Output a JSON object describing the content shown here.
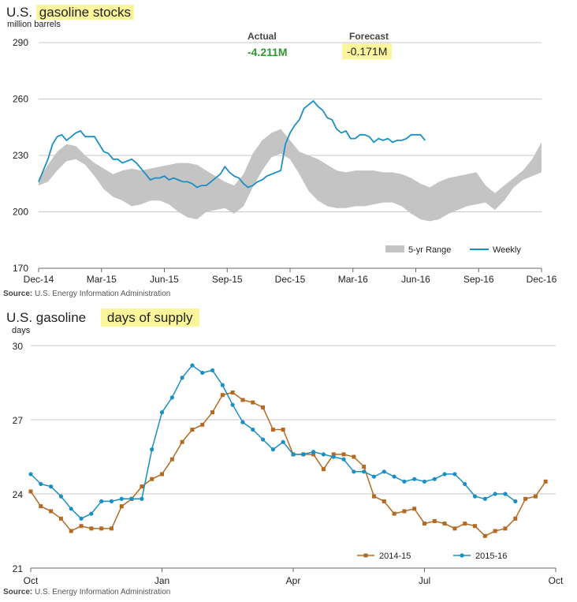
{
  "top": {
    "title_prefix": "U.S.",
    "title_highlight": "gasoline stocks",
    "unit": "million barrels",
    "actual_label": "Actual",
    "actual_value": "-4.211M",
    "forecast_label": "Forecast",
    "forecast_value": "-0.171M",
    "source_bold": "Source:",
    "source_text": " U.S. Energy Information Administration"
  },
  "bottom": {
    "title_prefix": "U.S. gasoline",
    "title_highlight": "days of supply",
    "unit": "days",
    "source_bold": "Source:",
    "source_text": " U.S. Energy Information Administration"
  },
  "colors": {
    "weekly": "#1a8fc4",
    "range": "#c4c4c4",
    "series_2014": "#b56a22",
    "series_2015": "#1a8fc4",
    "highlight": "#fbf59b",
    "actual": "#2e9a2e"
  },
  "chart_data": [
    {
      "type": "area",
      "title": "U.S. gasoline stocks",
      "ylabel": "million barrels",
      "ylim": [
        170,
        290
      ],
      "yticks": [
        170,
        200,
        230,
        260,
        290
      ],
      "x_tick_labels": [
        "Dec-14",
        "Mar-15",
        "Jun-15",
        "Sep-15",
        "Dec-15",
        "Mar-16",
        "Jun-16",
        "Sep-16",
        "Dec-16"
      ],
      "legend": [
        "5-yr Range",
        "Weekly"
      ],
      "legend_position": "bottom-right",
      "grid": true,
      "range_x": [
        0,
        2,
        4,
        6,
        8,
        10,
        12,
        14,
        16,
        18,
        20,
        22,
        24,
        26,
        28,
        30,
        32,
        34,
        36,
        38,
        40,
        42,
        44,
        46,
        48,
        50,
        52,
        54,
        56,
        58,
        60,
        62,
        64,
        66,
        68,
        70,
        72,
        74,
        76,
        78,
        80,
        82,
        84,
        86,
        88,
        90,
        92,
        94,
        96,
        98,
        100,
        102,
        104,
        106,
        108
      ],
      "range_upper": [
        217,
        225,
        232,
        236,
        235,
        230,
        226,
        223,
        220,
        222,
        223,
        222,
        223,
        224,
        225,
        226,
        226,
        225,
        222,
        219,
        216,
        214,
        220,
        231,
        238,
        242,
        244,
        238,
        232,
        230,
        228,
        225,
        222,
        221,
        222,
        222,
        222,
        221,
        221,
        220,
        218,
        215,
        213,
        216,
        218,
        219,
        220,
        221,
        214,
        210,
        214,
        218,
        222,
        228,
        237
      ],
      "range_lower": [
        214,
        216,
        222,
        227,
        228,
        225,
        219,
        212,
        208,
        206,
        203,
        204,
        206,
        206,
        204,
        200,
        197,
        196,
        200,
        201,
        202,
        199,
        203,
        213,
        222,
        229,
        231,
        228,
        220,
        211,
        206,
        203,
        202,
        202,
        203,
        203,
        204,
        205,
        205,
        203,
        199,
        196,
        195,
        196,
        199,
        201,
        203,
        204,
        205,
        201,
        206,
        213,
        217,
        219,
        221
      ],
      "weekly_x": [
        0,
        1,
        2,
        3,
        4,
        5,
        6,
        7,
        8,
        9,
        10,
        11,
        12,
        13,
        14,
        15,
        16,
        17,
        18,
        19,
        20,
        21,
        22,
        23,
        24,
        25,
        26,
        27,
        28,
        29,
        30,
        31,
        32,
        33,
        34,
        35,
        36,
        37,
        38,
        39,
        40,
        41,
        42,
        43,
        44,
        45,
        46,
        47,
        48,
        49,
        50,
        51,
        52,
        53,
        54,
        55,
        56,
        57,
        58,
        59,
        60,
        61,
        62,
        63,
        64,
        65,
        66,
        67,
        68,
        69,
        70,
        71,
        72,
        73,
        74,
        75,
        76,
        77,
        78,
        79,
        80,
        81,
        82,
        83
      ],
      "weekly_values": [
        216,
        222,
        228,
        236,
        240,
        241,
        238,
        240,
        242,
        243,
        240,
        240,
        240,
        236,
        232,
        231,
        228,
        228,
        226,
        227,
        228,
        226,
        223,
        220,
        217,
        218,
        218,
        219,
        217,
        218,
        217,
        216,
        216,
        215,
        213,
        214,
        214,
        216,
        218,
        220,
        224,
        221,
        219,
        218,
        215,
        213,
        214,
        216,
        217,
        219,
        220,
        221,
        222,
        236,
        242,
        246,
        249,
        255,
        257,
        259,
        256,
        254,
        250,
        249,
        244,
        242,
        243,
        239,
        239,
        241,
        241,
        240,
        237,
        239,
        238,
        239,
        237,
        238,
        238,
        239,
        241,
        241,
        241,
        238
      ]
    },
    {
      "type": "line",
      "title": "U.S. gasoline days of supply",
      "ylabel": "days",
      "ylim": [
        21,
        30
      ],
      "yticks": [
        21,
        24,
        27,
        30
      ],
      "x_tick_labels": [
        "Oct",
        "Jan",
        "Apr",
        "Jul",
        "Oct"
      ],
      "legend_position": "bottom-right",
      "grid": true,
      "series": [
        {
          "name": "2014-15",
          "x": [
            0,
            1,
            2,
            3,
            4,
            5,
            6,
            7,
            8,
            9,
            10,
            11,
            12,
            13,
            14,
            15,
            16,
            17,
            18,
            19,
            20,
            21,
            22,
            23,
            24,
            25,
            26,
            27,
            28,
            29,
            30,
            31,
            32,
            33,
            34,
            35,
            36,
            37,
            38,
            39,
            40,
            41,
            42,
            43,
            44,
            45,
            46,
            47,
            48,
            49,
            50,
            51
          ],
          "values": [
            24.1,
            23.5,
            23.3,
            23.0,
            22.5,
            22.7,
            22.6,
            22.6,
            22.6,
            23.5,
            23.8,
            24.3,
            24.6,
            24.8,
            25.4,
            26.1,
            26.6,
            26.8,
            27.3,
            28.0,
            28.1,
            27.8,
            27.7,
            27.5,
            26.6,
            26.6,
            25.6,
            25.6,
            25.6,
            25.0,
            25.6,
            25.6,
            25.5,
            25.1,
            23.9,
            23.7,
            23.2,
            23.3,
            23.4,
            22.8,
            22.9,
            22.8,
            22.6,
            22.8,
            22.7,
            22.3,
            22.5,
            22.6,
            23.0,
            23.8,
            23.9,
            24.5
          ]
        },
        {
          "name": "2015-16",
          "x": [
            0,
            1,
            2,
            3,
            4,
            5,
            6,
            7,
            8,
            9,
            10,
            11,
            12,
            13,
            14,
            15,
            16,
            17,
            18,
            19,
            20,
            21,
            22,
            23,
            24,
            25,
            26,
            27,
            28,
            29,
            30,
            31,
            32,
            33,
            34,
            35,
            36,
            37,
            38,
            39,
            40,
            41,
            42,
            43,
            44,
            45,
            46,
            47,
            48
          ],
          "values": [
            24.8,
            24.4,
            24.3,
            23.9,
            23.4,
            23.0,
            23.2,
            23.7,
            23.7,
            23.8,
            23.8,
            23.8,
            25.8,
            27.3,
            27.9,
            28.7,
            29.2,
            28.9,
            29.0,
            28.4,
            27.6,
            26.9,
            26.6,
            26.2,
            25.8,
            26.1,
            25.6,
            25.6,
            25.7,
            25.6,
            25.5,
            25.4,
            24.9,
            24.9,
            24.7,
            24.9,
            24.7,
            24.5,
            24.6,
            24.5,
            24.6,
            24.8,
            24.8,
            24.4,
            23.9,
            23.8,
            24.0,
            24.0,
            23.7
          ]
        }
      ]
    }
  ]
}
